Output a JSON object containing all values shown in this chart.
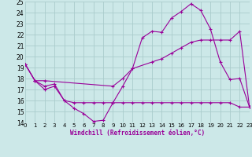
{
  "xlabel": "Windchill (Refroidissement éolien,°C)",
  "bg_color": "#cce8e8",
  "grid_color": "#aacccc",
  "line_color": "#990099",
  "xlim": [
    0,
    23
  ],
  "ylim": [
    14,
    25
  ],
  "xticks": [
    0,
    1,
    2,
    3,
    4,
    5,
    6,
    7,
    8,
    9,
    10,
    11,
    12,
    13,
    14,
    15,
    16,
    17,
    18,
    19,
    20,
    21,
    22,
    23
  ],
  "yticks": [
    14,
    15,
    16,
    17,
    18,
    19,
    20,
    21,
    22,
    23,
    24,
    25
  ],
  "series1": {
    "x": [
      0,
      1,
      2,
      3,
      4,
      5,
      6,
      7,
      8,
      9,
      10,
      11,
      12,
      13,
      14,
      15,
      16,
      17,
      18,
      19,
      20,
      21,
      22,
      23
    ],
    "y": [
      19.3,
      17.8,
      17.0,
      17.3,
      16.0,
      15.3,
      14.8,
      14.1,
      14.2,
      15.8,
      17.3,
      18.9,
      21.7,
      22.3,
      22.2,
      23.5,
      24.1,
      24.8,
      24.2,
      22.5,
      19.5,
      17.9,
      18.0,
      15.4
    ]
  },
  "series2": {
    "x": [
      0,
      1,
      2,
      3,
      4,
      5,
      6,
      7,
      8,
      9,
      10,
      11,
      12,
      13,
      14,
      15,
      16,
      17,
      18,
      19,
      20,
      21,
      22,
      23
    ],
    "y": [
      19.3,
      17.8,
      17.3,
      17.5,
      16.0,
      15.8,
      15.8,
      15.8,
      15.8,
      15.8,
      15.8,
      15.8,
      15.8,
      15.8,
      15.8,
      15.8,
      15.8,
      15.8,
      15.8,
      15.8,
      15.8,
      15.8,
      15.4,
      15.4
    ]
  },
  "series3": {
    "x": [
      0,
      1,
      2,
      9,
      10,
      11,
      13,
      14,
      15,
      16,
      17,
      18,
      19,
      20,
      21,
      22,
      23
    ],
    "y": [
      19.3,
      17.8,
      17.8,
      17.3,
      18.0,
      18.9,
      19.5,
      19.8,
      20.3,
      20.8,
      21.3,
      21.5,
      21.5,
      21.5,
      21.5,
      22.3,
      15.4
    ]
  }
}
